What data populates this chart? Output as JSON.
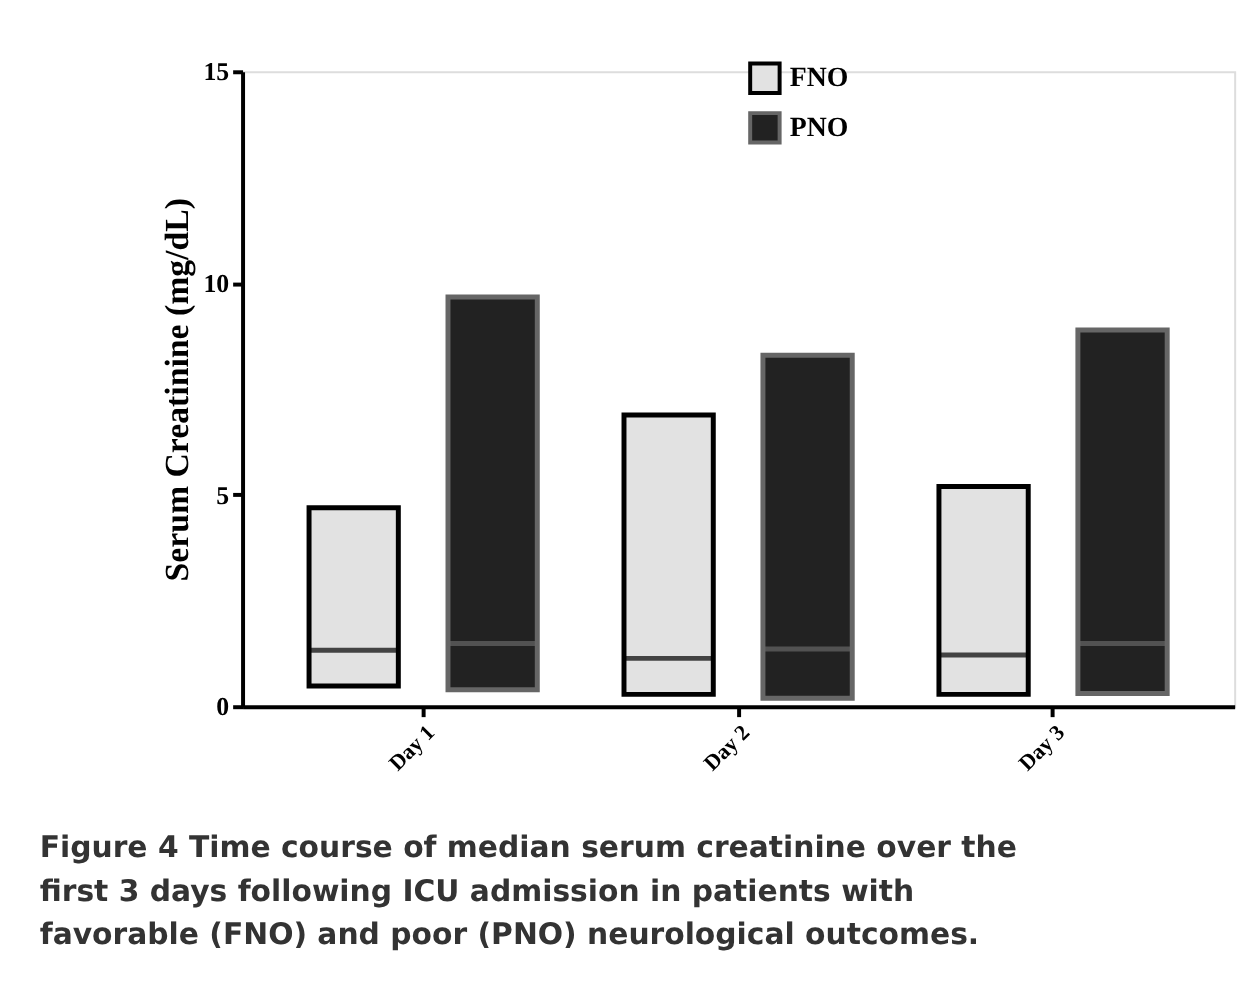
{
  "chart_data": {
    "type": "box",
    "ylabel": "Serum Creatinine (mg/dL)",
    "categories": [
      "Day 1",
      "Day 2",
      "Day 3"
    ],
    "ylim": [
      0,
      15
    ],
    "yticks": [
      0,
      5,
      10,
      15
    ],
    "grid": false,
    "legend": "top",
    "series": [
      {
        "name": "FNO",
        "color": "#e2e2e2",
        "boxes": [
          {
            "low": 0.48,
            "q1": 0.48,
            "median": 1.32,
            "q3": 4.69,
            "high": 4.69
          },
          {
            "low": 0.28,
            "q1": 0.28,
            "median": 1.13,
            "q3": 6.88,
            "high": 6.88
          },
          {
            "low": 0.28,
            "q1": 0.28,
            "median": 1.21,
            "q3": 5.19,
            "high": 5.19
          }
        ]
      },
      {
        "name": "PNO",
        "color": "#222222",
        "boxes": [
          {
            "low": 0.39,
            "q1": 0.39,
            "median": 1.48,
            "q3": 9.67,
            "high": 9.67
          },
          {
            "low": 0.19,
            "q1": 0.19,
            "median": 1.35,
            "q3": 8.29,
            "high": 8.29
          },
          {
            "low": 0.3,
            "q1": 0.3,
            "median": 1.48,
            "q3": 8.89,
            "high": 8.89
          }
        ]
      }
    ],
    "annotations": [
      "Figure 4 Time course of median serum creatinine over the first 3 days following ICU admission in patients with favorable (FNO) and poor (PNO) neurological outcomes."
    ]
  }
}
